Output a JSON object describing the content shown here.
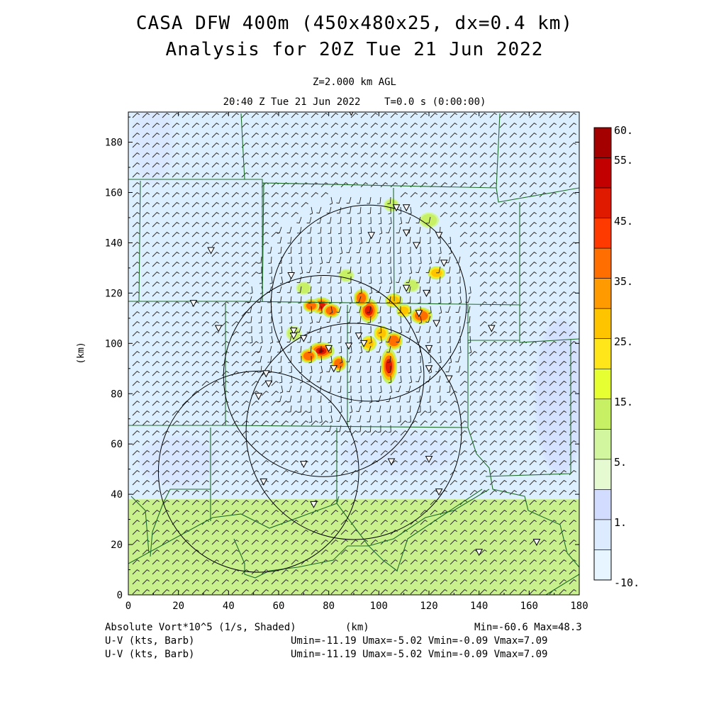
{
  "header": {
    "title_line1": "CASA DFW 400m (450x480x25, dx=0.4 km)",
    "title_line2": "Analysis for 20Z Tue 21 Jun 2022",
    "level": "Z=2.000 km AGL",
    "time": "20:40 Z Tue 21 Jun 2022    T=0.0 s (0:00:00)"
  },
  "footer": {
    "field_label": "Absolute Vort*10^5 (1/s, Shaded)",
    "xunit": "(km)",
    "minmax": "Min=-60.6 Max=48.3",
    "wind_label_1": "U-V (kts, Barb)",
    "wind_stats_1": "Umin=-11.19 Umax=-5.02 Vmin=-0.09 Vmax=7.09",
    "wind_label_2": "U-V (kts, Barb)",
    "wind_stats_2": "Umin=-11.19 Umax=-5.02 Vmin=-0.09 Vmax=7.09"
  },
  "chart_data": {
    "type": "heatmap",
    "xlabel": "(km)",
    "ylabel": "(km)",
    "xlim": [
      0,
      180
    ],
    "ylim": [
      0,
      192
    ],
    "xticks": [
      0,
      20,
      40,
      60,
      80,
      100,
      120,
      140,
      160,
      180
    ],
    "yticks": [
      0,
      20,
      40,
      60,
      80,
      100,
      120,
      140,
      160,
      180
    ],
    "colorbar": {
      "labels": [
        "60.",
        "55.",
        "45.",
        "35.",
        "25.",
        "15.",
        "5.",
        "1.",
        "-10."
      ],
      "colors": [
        "#a50000",
        "#c30000",
        "#e01a00",
        "#ff3a00",
        "#ff6e00",
        "#ff9a00",
        "#ffc400",
        "#ffe61a",
        "#e6ff33",
        "#c8f064",
        "#d2f5a0",
        "#e6fad2",
        "#d2dcff",
        "#dcebff",
        "#e6f5ff"
      ]
    },
    "background_shading": {
      "north_value_color": "#dcefff",
      "south_value_color": "#c8f08c",
      "boundary_y": 38
    },
    "vorticity_cells": [
      {
        "x": 77,
        "y": 115,
        "v": 40,
        "rx": 2.0,
        "ry": 1.5
      },
      {
        "x": 73,
        "y": 115,
        "v": 30,
        "rx": 1.5,
        "ry": 1.2
      },
      {
        "x": 81,
        "y": 113,
        "v": 35,
        "rx": 1.6,
        "ry": 1.3
      },
      {
        "x": 96,
        "y": 113,
        "v": 40,
        "rx": 1.8,
        "ry": 2.2
      },
      {
        "x": 93,
        "y": 118,
        "v": 30,
        "rx": 1.4,
        "ry": 1.6
      },
      {
        "x": 106,
        "y": 117,
        "v": 25,
        "rx": 1.6,
        "ry": 1.3
      },
      {
        "x": 117,
        "y": 111,
        "v": 35,
        "rx": 2.0,
        "ry": 1.5
      },
      {
        "x": 110,
        "y": 113,
        "v": 20,
        "rx": 1.4,
        "ry": 1.2
      },
      {
        "x": 77,
        "y": 97,
        "v": 48,
        "rx": 2.4,
        "ry": 1.6
      },
      {
        "x": 72,
        "y": 95,
        "v": 30,
        "rx": 1.6,
        "ry": 1.3
      },
      {
        "x": 84,
        "y": 92,
        "v": 30,
        "rx": 1.4,
        "ry": 1.4
      },
      {
        "x": 104,
        "y": 91,
        "v": 45,
        "rx": 1.5,
        "ry": 3.2
      },
      {
        "x": 106,
        "y": 101,
        "v": 30,
        "rx": 1.6,
        "ry": 1.6
      },
      {
        "x": 101,
        "y": 104,
        "v": 25,
        "rx": 1.4,
        "ry": 1.4
      },
      {
        "x": 96,
        "y": 100,
        "v": 20,
        "rx": 1.4,
        "ry": 1.4
      },
      {
        "x": 123,
        "y": 128,
        "v": 20,
        "rx": 1.6,
        "ry": 1.2
      },
      {
        "x": 120,
        "y": 149,
        "v": 15,
        "rx": 1.8,
        "ry": 1.4
      },
      {
        "x": 105,
        "y": 155,
        "v": 15,
        "rx": 1.4,
        "ry": 1.2
      },
      {
        "x": 87,
        "y": 127,
        "v": 15,
        "rx": 1.4,
        "ry": 1.2
      },
      {
        "x": 113,
        "y": 123,
        "v": 15,
        "rx": 1.5,
        "ry": 1.2
      },
      {
        "x": 66,
        "y": 104,
        "v": 15,
        "rx": 1.4,
        "ry": 1.4
      },
      {
        "x": 70,
        "y": 122,
        "v": 15,
        "rx": 1.4,
        "ry": 1.2
      }
    ],
    "radar_rings": [
      {
        "cx": 96,
        "cy": 116,
        "r": 39
      },
      {
        "cx": 78,
        "cy": 87,
        "r": 40
      },
      {
        "cx": 90,
        "cy": 65,
        "r": 43
      },
      {
        "cx": 52,
        "cy": 49,
        "r": 40
      }
    ],
    "stations": [
      [
        89,
        192
      ],
      [
        107,
        154
      ],
      [
        111,
        154
      ],
      [
        97,
        143
      ],
      [
        111,
        144
      ],
      [
        115,
        139
      ],
      [
        124,
        143
      ],
      [
        33,
        137
      ],
      [
        126,
        132
      ],
      [
        65,
        127
      ],
      [
        111,
        122
      ],
      [
        119,
        120
      ],
      [
        26,
        116
      ],
      [
        116,
        112
      ],
      [
        123,
        108
      ],
      [
        36,
        106
      ],
      [
        66,
        105
      ],
      [
        66,
        103
      ],
      [
        70,
        102
      ],
      [
        92,
        103
      ],
      [
        145,
        106
      ],
      [
        80,
        98
      ],
      [
        88,
        99
      ],
      [
        94,
        100
      ],
      [
        120,
        98
      ],
      [
        82,
        90
      ],
      [
        120,
        90
      ],
      [
        128,
        86
      ],
      [
        55,
        88
      ],
      [
        56,
        84
      ],
      [
        52,
        79
      ],
      [
        70,
        52
      ],
      [
        105,
        53
      ],
      [
        120,
        54
      ],
      [
        54,
        45
      ],
      [
        124,
        41
      ],
      [
        74,
        36
      ],
      [
        140,
        17
      ],
      [
        163,
        21
      ]
    ]
  }
}
